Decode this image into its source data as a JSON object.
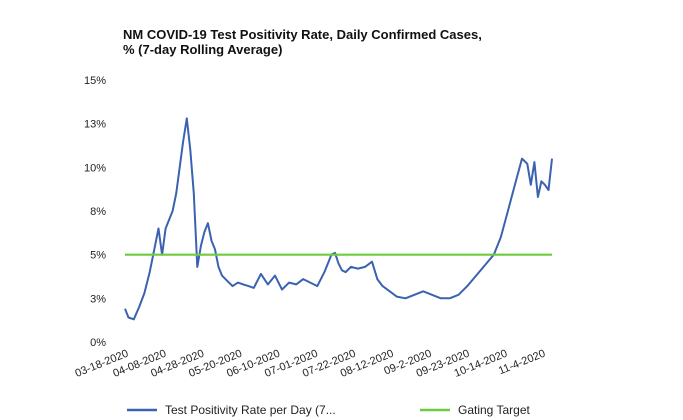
{
  "chart_data": {
    "type": "line",
    "title": "NM COVID-19 Test Positivity Rate, Daily Confirmed Cases,",
    "subtitle": "% (7-day Rolling Average)",
    "xlabel": "",
    "ylabel": "",
    "ylim": [
      0,
      15
    ],
    "yticks": [
      0,
      2.5,
      5,
      7.5,
      10,
      12.5,
      15
    ],
    "ytick_labels": [
      "0%",
      "3%",
      "5%",
      "8%",
      "10%",
      "13%",
      "15%"
    ],
    "xtick_labels": [
      "03-18-2020",
      "04-08-2020",
      "04-28-2020",
      "05-20-2020",
      "06-10-2020",
      "07-01-2020",
      "07-22-2020",
      "08-12-2020",
      "09-2-2020",
      "09-23-2020",
      "10-14-2020",
      "11-4-2020"
    ],
    "grid": false,
    "legend_position": "bottom",
    "series": [
      {
        "name": "Test Positivity Rate per Day (7...",
        "color": "#3a62b0",
        "x": [
          "2020-03-18",
          "2020-03-20",
          "2020-03-23",
          "2020-03-26",
          "2020-03-29",
          "2020-04-01",
          "2020-04-04",
          "2020-04-06",
          "2020-04-08",
          "2020-04-10",
          "2020-04-12",
          "2020-04-14",
          "2020-04-16",
          "2020-04-18",
          "2020-04-20",
          "2020-04-22",
          "2020-04-24",
          "2020-04-26",
          "2020-04-28",
          "2020-04-30",
          "2020-05-02",
          "2020-05-04",
          "2020-05-06",
          "2020-05-08",
          "2020-05-10",
          "2020-05-12",
          "2020-05-15",
          "2020-05-18",
          "2020-05-21",
          "2020-05-24",
          "2020-05-27",
          "2020-05-30",
          "2020-06-03",
          "2020-06-07",
          "2020-06-11",
          "2020-06-15",
          "2020-06-19",
          "2020-06-23",
          "2020-06-27",
          "2020-07-01",
          "2020-07-05",
          "2020-07-09",
          "2020-07-13",
          "2020-07-15",
          "2020-07-17",
          "2020-07-19",
          "2020-07-21",
          "2020-07-24",
          "2020-07-28",
          "2020-08-01",
          "2020-08-05",
          "2020-08-08",
          "2020-08-11",
          "2020-08-15",
          "2020-08-19",
          "2020-08-24",
          "2020-08-29",
          "2020-09-03",
          "2020-09-08",
          "2020-09-13",
          "2020-09-18",
          "2020-09-23",
          "2020-09-28",
          "2020-10-03",
          "2020-10-08",
          "2020-10-13",
          "2020-10-17",
          "2020-10-21",
          "2020-10-25",
          "2020-10-29",
          "2020-11-01",
          "2020-11-03",
          "2020-11-05",
          "2020-11-07",
          "2020-11-09",
          "2020-11-11",
          "2020-11-13",
          "2020-11-15"
        ],
        "values": [
          1.9,
          1.4,
          1.3,
          2.0,
          2.8,
          4.0,
          5.5,
          6.5,
          5.0,
          6.5,
          7.0,
          7.5,
          8.5,
          10.0,
          11.5,
          12.8,
          11.0,
          8.5,
          4.3,
          5.5,
          6.3,
          6.8,
          5.8,
          5.3,
          4.3,
          3.8,
          3.5,
          3.2,
          3.4,
          3.3,
          3.2,
          3.1,
          3.9,
          3.3,
          3.8,
          3.0,
          3.4,
          3.3,
          3.6,
          3.4,
          3.2,
          4.0,
          5.0,
          5.1,
          4.5,
          4.1,
          4.0,
          4.3,
          4.2,
          4.3,
          4.6,
          3.6,
          3.2,
          2.9,
          2.6,
          2.5,
          2.7,
          2.9,
          2.7,
          2.5,
          2.5,
          2.7,
          3.2,
          3.8,
          4.4,
          5.0,
          6.0,
          7.5,
          9.0,
          10.5,
          10.2,
          9.0,
          10.3,
          8.3,
          9.2,
          9.0,
          8.7,
          10.5
        ]
      },
      {
        "name": "Gating Target",
        "color": "#6fcb3e",
        "x": [
          "2020-03-18",
          "2020-11-15"
        ],
        "values": [
          5,
          5
        ]
      }
    ]
  }
}
